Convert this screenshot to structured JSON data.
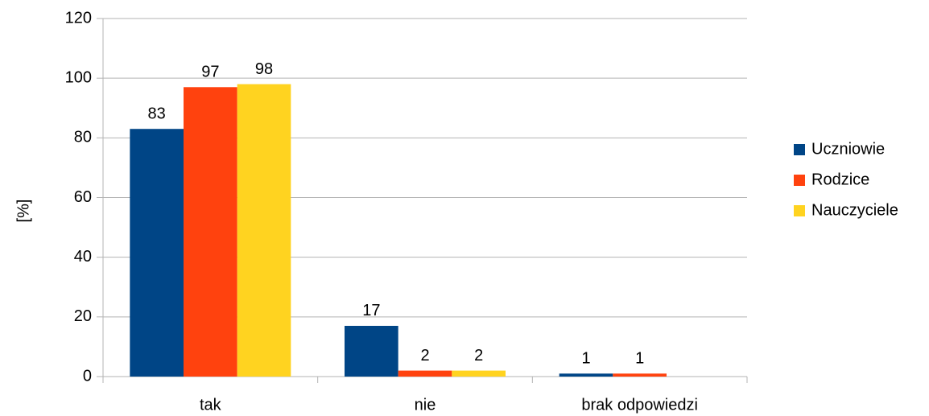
{
  "chart_data": {
    "type": "bar",
    "categories": [
      "tak",
      "nie",
      "brak odpowiedzi"
    ],
    "series": [
      {
        "name": "Uczniowie",
        "color": "#004586",
        "values": [
          83,
          17,
          1
        ]
      },
      {
        "name": "Rodzice",
        "color": "#ff420e",
        "values": [
          97,
          2,
          1
        ]
      },
      {
        "name": "Nauczyciele",
        "color": "#ffd320",
        "values": [
          98,
          2,
          null
        ]
      }
    ],
    "ylabel": "[%]",
    "ylim": [
      0,
      120
    ],
    "yticks": [
      0,
      20,
      40,
      60,
      80,
      100,
      120
    ],
    "grid": true,
    "legend": "right"
  }
}
